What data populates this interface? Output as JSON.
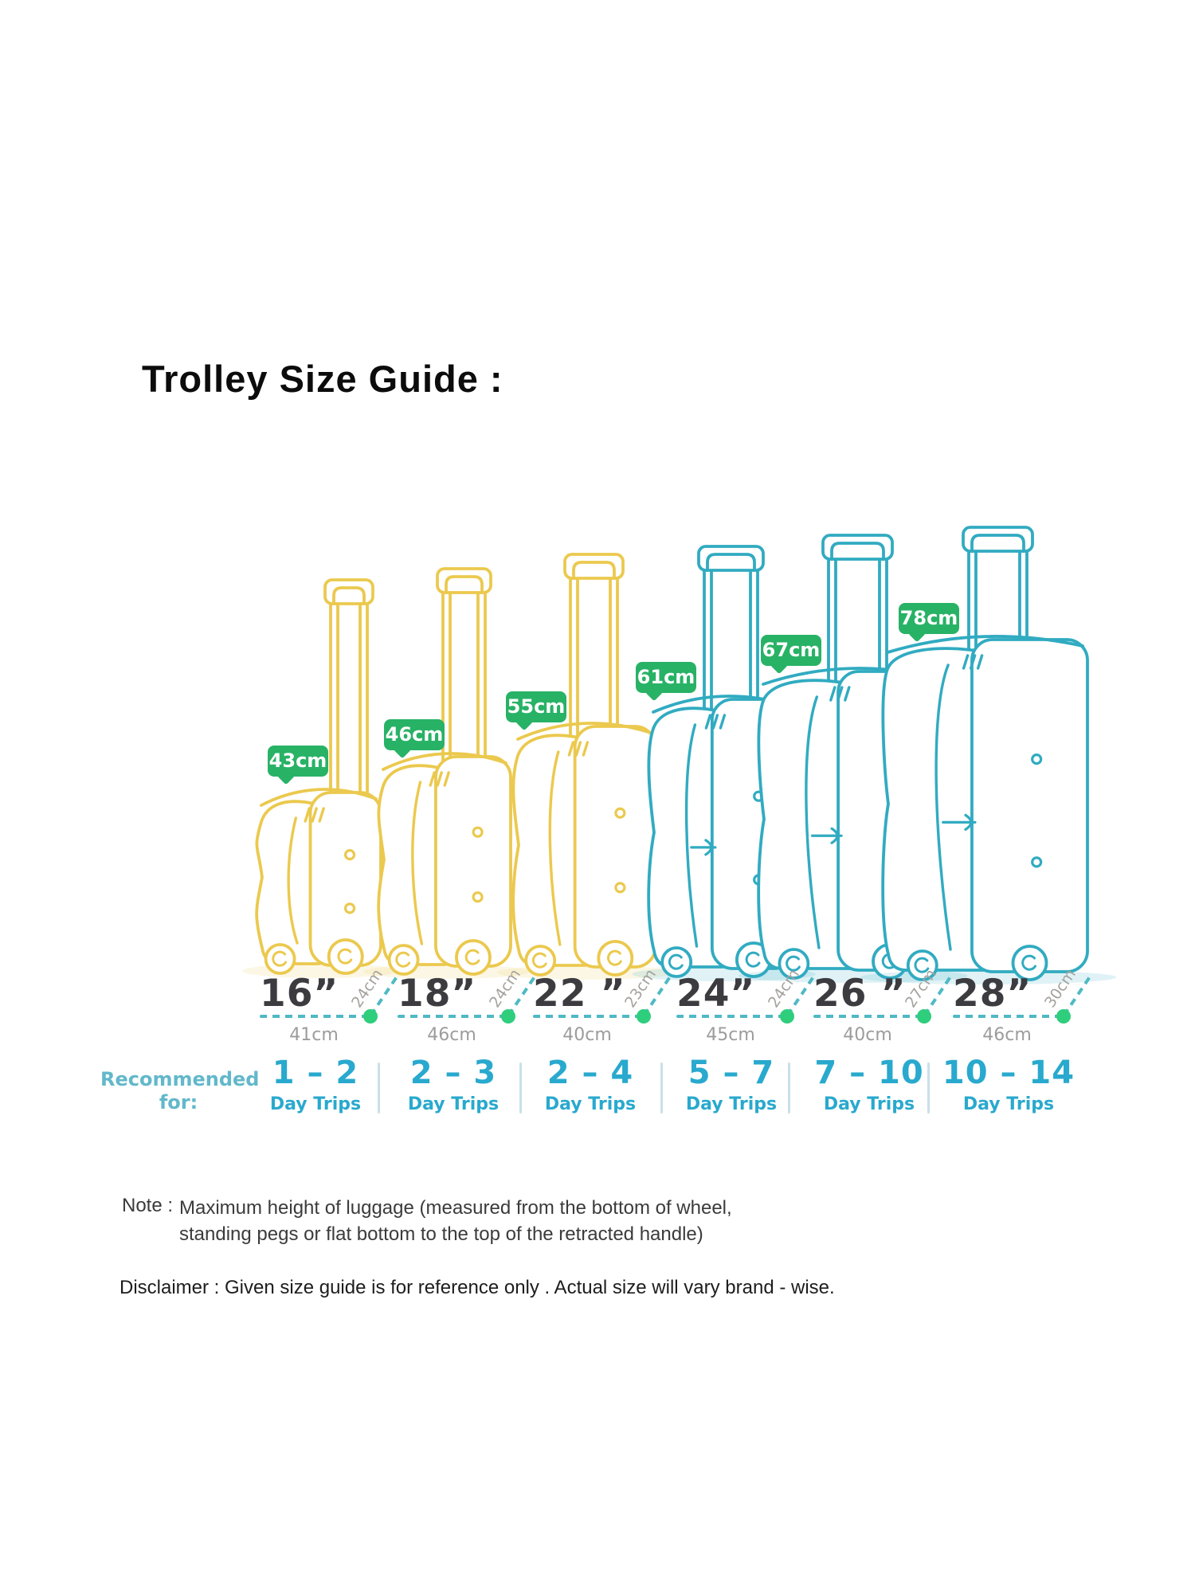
{
  "title": "Trolley Size Guide :",
  "colors": {
    "yellow_case": "#ebc94e",
    "teal_case": "#31abc1",
    "badge_green": "#28b266",
    "dot_green": "#2fce7c",
    "dash_teal": "#4fb9c4",
    "inch_text": "#3c3c40",
    "width_text": "#9c9c9c",
    "depth_text": "#a5a29e",
    "day_text": "#29a9ce",
    "recommended_text": "#62b8ca"
  },
  "sizes": [
    {
      "inches": "16”",
      "height": "43cm",
      "width": "41cm",
      "depth": "24cm",
      "days": "1 – 2",
      "days_unit": "Day Trips"
    },
    {
      "inches": "18”",
      "height": "46cm",
      "width": "46cm",
      "depth": "24cm",
      "days": "2 – 3",
      "days_unit": "Day Trips"
    },
    {
      "inches": "22 ”",
      "height": "55cm",
      "width": "40cm",
      "depth": "23cm",
      "days": "2 – 4",
      "days_unit": "Day Trips"
    },
    {
      "inches": "24”",
      "height": "61cm",
      "width": "45cm",
      "depth": "24cm",
      "days": "5 – 7",
      "days_unit": "Day Trips"
    },
    {
      "inches": "26 ”",
      "height": "67cm",
      "width": "40cm",
      "depth": "27cm",
      "days": "7 – 10",
      "days_unit": "Day Trips"
    },
    {
      "inches": "28”",
      "height": "78cm",
      "width": "46cm",
      "depth": "30cm",
      "days": "10 – 14",
      "days_unit": "Day Trips"
    }
  ],
  "recommended": {
    "line1": "Recommended",
    "line2": "for:"
  },
  "note": {
    "label": "Note :",
    "line1": "Maximum height of luggage (measured from the bottom of wheel,",
    "line2": "standing pegs or flat bottom to the top of the retracted handle)"
  },
  "disclaimer": "Disclaimer : Given size guide is for reference only . Actual size will vary brand - wise."
}
